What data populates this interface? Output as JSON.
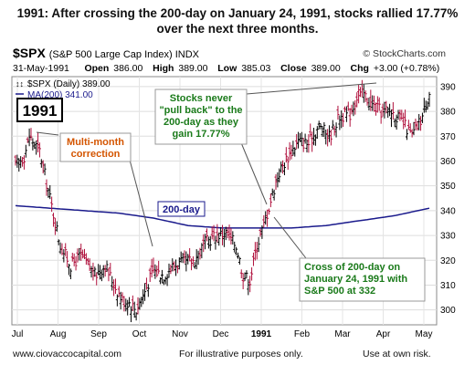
{
  "headline": [
    "1991: After crossing the 200-day on January 24, 1991, stocks rallied 17.77%",
    "over the next three months."
  ],
  "symbol": "$SPX",
  "symbol_desc": "(S&P 500 Large Cap Index) INDX",
  "brand": "© StockCharts.com",
  "quote": {
    "date": "31-May-1991",
    "open_label": "Open",
    "open": "386.00",
    "high_label": "High",
    "high": "389.00",
    "low_label": "Low",
    "low": "385.03",
    "close_label": "Close",
    "close": "389.00",
    "chg_label": "Chg",
    "chg": "+3.00 (+0.78%)"
  },
  "legend": [
    "$SPX (Daily) 389.00",
    "MA(200) 341.00"
  ],
  "colors": {
    "price": "#000000",
    "ma": "#1a1a8c",
    "grid": "#dddddd",
    "callout_green": "#1a7a1a",
    "callout_orange": "#d45500",
    "callout_blue": "#1a1a8c"
  },
  "chart_data": {
    "type": "ohlc",
    "y_ticks": [
      300,
      310,
      320,
      330,
      340,
      350,
      360,
      370,
      380,
      390
    ],
    "ylim": [
      294,
      394
    ],
    "x_ticks": [
      "Jul",
      "Aug",
      "Sep",
      "Oct",
      "Nov",
      "Dec",
      "1991",
      "Feb",
      "Mar",
      "Apr",
      "May"
    ],
    "price_knots": [
      [
        0,
        358
      ],
      [
        5,
        362
      ],
      [
        8,
        370
      ],
      [
        14,
        364
      ],
      [
        20,
        345
      ],
      [
        26,
        326
      ],
      [
        32,
        318
      ],
      [
        38,
        322
      ],
      [
        46,
        314
      ],
      [
        52,
        318
      ],
      [
        58,
        309
      ],
      [
        62,
        304
      ],
      [
        66,
        303
      ],
      [
        70,
        300
      ],
      [
        74,
        306
      ],
      [
        80,
        316
      ],
      [
        86,
        314
      ],
      [
        92,
        318
      ],
      [
        98,
        319
      ],
      [
        104,
        320
      ],
      [
        110,
        327
      ],
      [
        116,
        330
      ],
      [
        122,
        331
      ],
      [
        128,
        326
      ],
      [
        132,
        314
      ],
      [
        136,
        312
      ],
      [
        140,
        326
      ],
      [
        144,
        334
      ],
      [
        148,
        344
      ],
      [
        152,
        354
      ],
      [
        158,
        362
      ],
      [
        164,
        368
      ],
      [
        170,
        367
      ],
      [
        176,
        374
      ],
      [
        182,
        370
      ],
      [
        188,
        378
      ],
      [
        194,
        379
      ],
      [
        198,
        386
      ],
      [
        202,
        387
      ],
      [
        206,
        383
      ],
      [
        212,
        380
      ],
      [
        218,
        380
      ],
      [
        224,
        376
      ],
      [
        230,
        370
      ],
      [
        236,
        378
      ],
      [
        240,
        388
      ]
    ],
    "ma_knots": [
      [
        0,
        342
      ],
      [
        20,
        341
      ],
      [
        40,
        340
      ],
      [
        60,
        339
      ],
      [
        80,
        337
      ],
      [
        100,
        334
      ],
      [
        120,
        333
      ],
      [
        140,
        333
      ],
      [
        160,
        333
      ],
      [
        180,
        334
      ],
      [
        200,
        336
      ],
      [
        220,
        338
      ],
      [
        240,
        341
      ]
    ],
    "annotations": [
      {
        "text": "1991"
      },
      {
        "text": [
          "Multi-month",
          "correction"
        ]
      },
      {
        "text": [
          "Stocks never",
          "\"pull back\" to the",
          "200-day as they",
          "gain 17.77%"
        ]
      },
      {
        "text": "200-day"
      },
      {
        "text": [
          "Cross of 200-day on",
          "January 24, 1991 with",
          "S&P 500 at 332"
        ]
      }
    ]
  },
  "footer": {
    "left": "www.ciovaccocapital.com",
    "center": "For illustrative purposes only.",
    "right": "Use at own risk."
  }
}
